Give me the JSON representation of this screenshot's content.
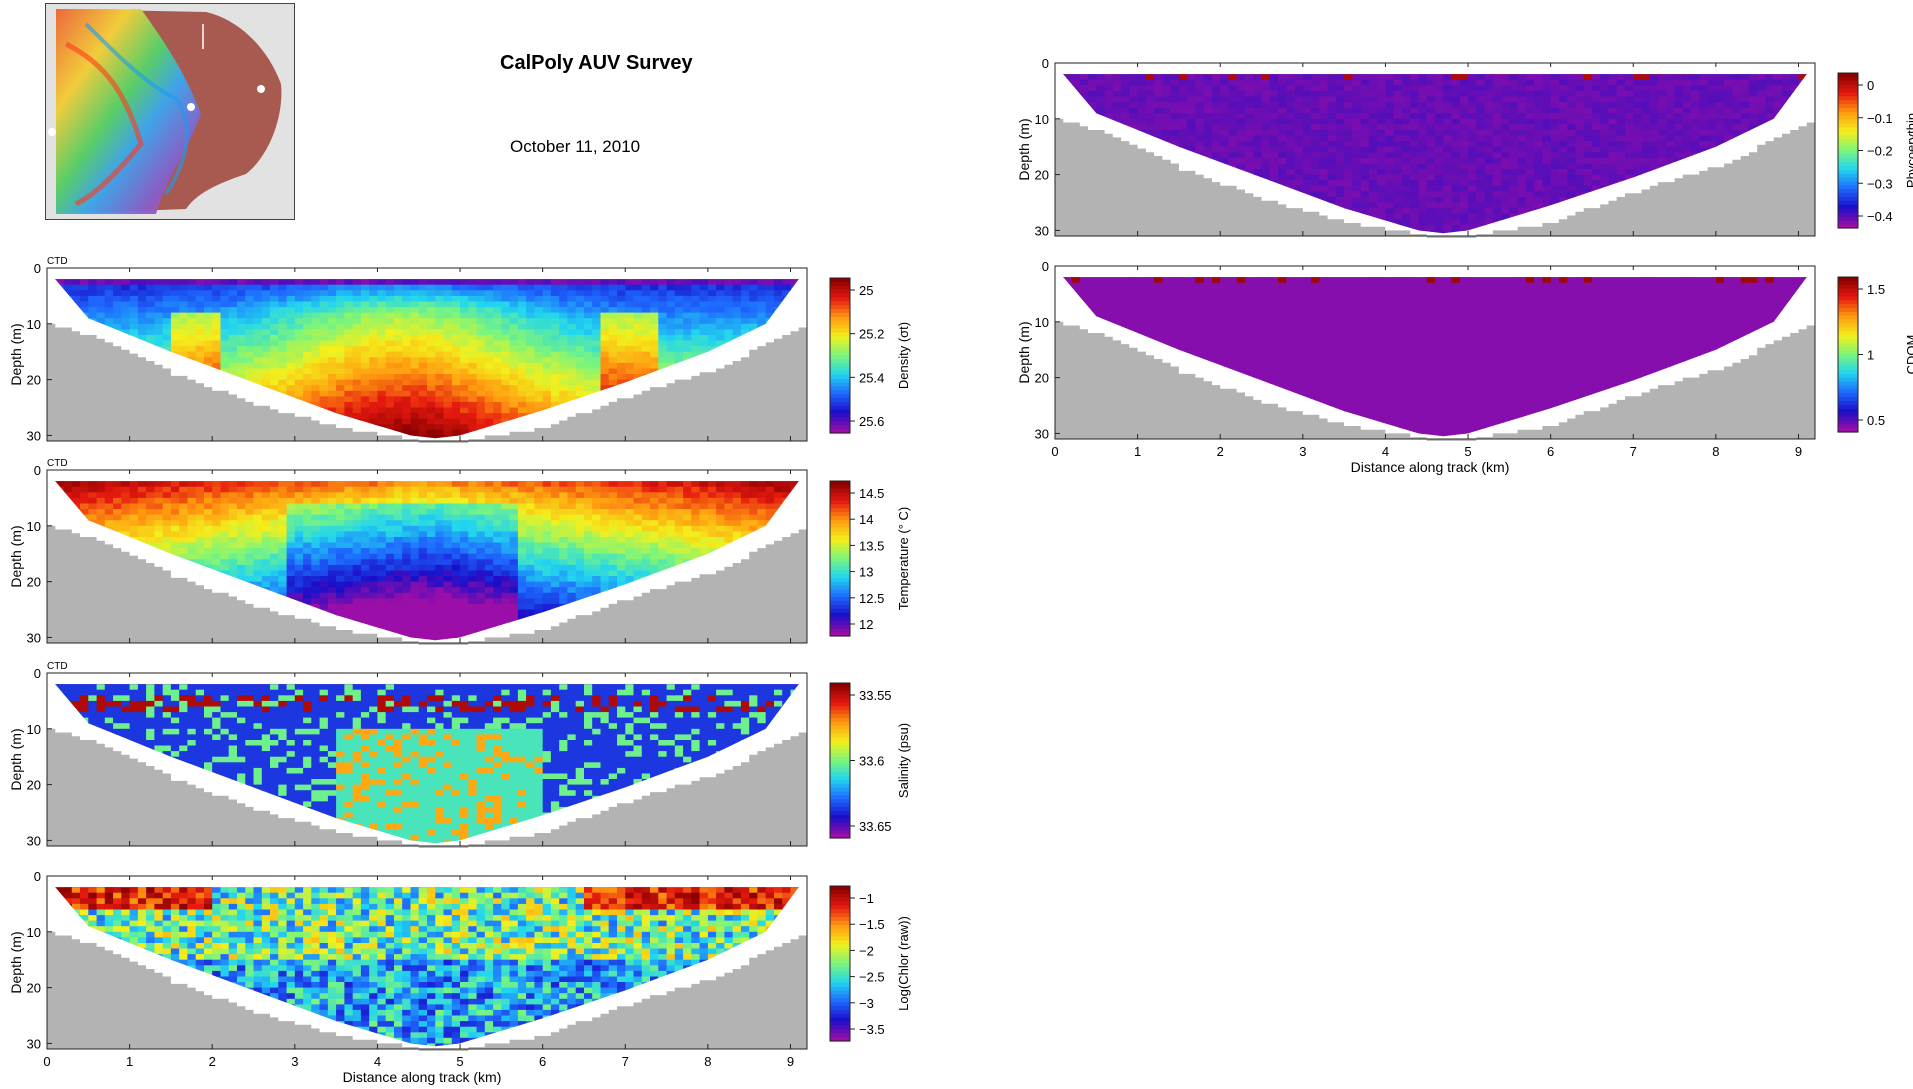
{
  "header": {
    "title": "CalPoly AUV Survey",
    "date": "October 11, 2010"
  },
  "map": {
    "icon": "survey-location-map"
  },
  "colors": {
    "bathymetry": "#b3b3b3",
    "jet": [
      "#9b0ea8",
      "#1a0ec8",
      "#1e6aff",
      "#22d6ee",
      "#7cf57a",
      "#f3f01c",
      "#ff9a10",
      "#e61a10",
      "#8a0000"
    ]
  },
  "panels": [
    {
      "id": "density",
      "tag": "CTD",
      "ylabel": "Depth (m)",
      "cbar_label": "Density (σt)",
      "cbar_ticks": [
        "25",
        "25.2",
        "25.4",
        "25.6"
      ],
      "cbar_reversed": true
    },
    {
      "id": "temperature",
      "tag": "CTD",
      "ylabel": "Depth (m)",
      "cbar_label": "Temperature (° C)",
      "cbar_ticks": [
        "14.5",
        "14",
        "13.5",
        "13",
        "12.5",
        "12"
      ],
      "cbar_reversed": false
    },
    {
      "id": "salinity",
      "tag": "CTD",
      "ylabel": "Depth (m)",
      "cbar_label": "Salinity (psu)",
      "cbar_ticks": [
        "33.55",
        "33.6",
        "33.65"
      ],
      "cbar_reversed": true
    },
    {
      "id": "chlorophyll",
      "tag": "",
      "ylabel": "Depth (m)",
      "cbar_label": "Log(Chlor (raw))",
      "cbar_ticks": [
        "−1",
        "−1.5",
        "−2",
        "−2.5",
        "−3",
        "−3.5"
      ],
      "cbar_reversed": false
    },
    {
      "id": "phycoerythrin",
      "tag": "",
      "ylabel": "Depth (m)",
      "cbar_label": "Phycoerythin",
      "cbar_ticks": [
        "0",
        "−0.1",
        "−0.2",
        "−0.3",
        "−0.4"
      ],
      "cbar_reversed": false
    },
    {
      "id": "cdom",
      "tag": "",
      "ylabel": "Depth (m)",
      "cbar_label": "CDOM",
      "cbar_ticks": [
        "1.5",
        "1",
        "0.5"
      ],
      "cbar_reversed": false
    }
  ],
  "chart_data": {
    "type": "heatmap",
    "title": "CalPoly AUV Survey",
    "xlabel": "Distance along track (km)",
    "ylabel": "Depth (m)",
    "xlim": [
      0,
      9.2
    ],
    "ylim": [
      31,
      0
    ],
    "x_ticks": [
      "0",
      "1",
      "2",
      "3",
      "4",
      "5",
      "6",
      "7",
      "8",
      "9"
    ],
    "y_ticks": [
      "0",
      "10",
      "20",
      "30"
    ],
    "section_outline": {
      "x_km": [
        0.1,
        0.5,
        1.5,
        2.5,
        3.5,
        4.4,
        4.7,
        5.0,
        6.0,
        7.0,
        8.0,
        8.7,
        9.1
      ],
      "depth_bottom_m": [
        2,
        9,
        15,
        20.5,
        26,
        30,
        30.5,
        30,
        25.5,
        20.5,
        15,
        10,
        2
      ]
    },
    "bathymetry_profile": {
      "x_km": [
        0,
        0.7,
        1.5,
        2.5,
        3.5,
        4.5,
        5.0,
        6.0,
        7.0,
        8.0,
        9.2
      ],
      "depth_m": [
        10,
        13,
        19,
        24.5,
        28.5,
        31,
        31,
        28.5,
        23,
        18.5,
        10
      ]
    },
    "series": [
      {
        "name": "Density (σt)",
        "range": [
          25.0,
          25.65
        ]
      },
      {
        "name": "Temperature (° C)",
        "range": [
          11.8,
          14.8
        ]
      },
      {
        "name": "Salinity (psu)",
        "range": [
          33.53,
          33.68
        ]
      },
      {
        "name": "Log(Chlor (raw))",
        "range": [
          -3.6,
          -0.9
        ]
      },
      {
        "name": "Phycoerythin",
        "range": [
          -0.45,
          0.02
        ]
      },
      {
        "name": "CDOM",
        "range": [
          0.4,
          1.8
        ]
      }
    ]
  }
}
